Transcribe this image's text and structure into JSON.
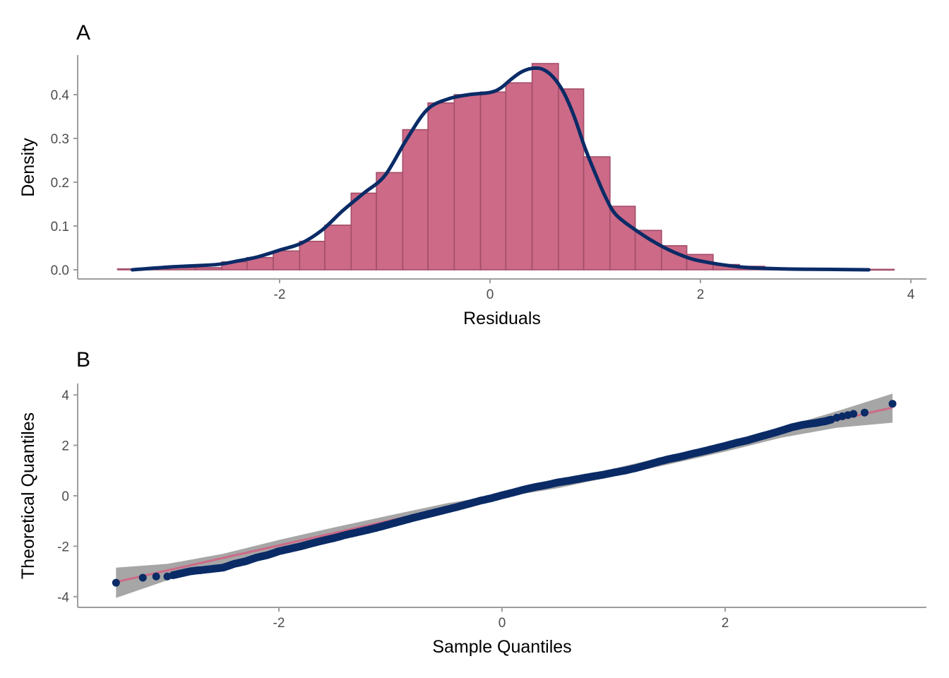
{
  "colors": {
    "bar_fill": "#CC6A87",
    "bar_stroke": "#A34E6A",
    "curve": "#0A2B66",
    "points": "#0A2B66",
    "ref_line": "#CC6A87",
    "band": "#A6A6A6",
    "axis": "#9E9E9E"
  },
  "chart_data": [
    {
      "panel": "A",
      "type": "bar",
      "subtype": "histogram with density curve",
      "title": "A",
      "xlabel": "Residuals",
      "ylabel": "Density",
      "xlim": [
        -3.4,
        4.0
      ],
      "ylim": [
        0,
        0.48
      ],
      "xticks": [
        -2,
        0,
        2,
        4
      ],
      "yticks": [
        0.0,
        0.1,
        0.2,
        0.3,
        0.4
      ],
      "xtick_labels": [
        "-2",
        "0",
        "2",
        "4"
      ],
      "ytick_labels": [
        "0.0",
        "0.1",
        "0.2",
        "0.3",
        "0.4"
      ],
      "grid": false,
      "bin_width": 0.246,
      "bins": [
        {
          "x0": -3.54,
          "x1": -3.29,
          "value": 0.002
        },
        {
          "x0": -3.29,
          "x1": -3.05,
          "value": 0.002
        },
        {
          "x0": -3.05,
          "x1": -2.8,
          "value": 0.005
        },
        {
          "x0": -2.8,
          "x1": -2.55,
          "value": 0.005
        },
        {
          "x0": -2.55,
          "x1": -2.31,
          "value": 0.018
        },
        {
          "x0": -2.31,
          "x1": -2.06,
          "value": 0.028
        },
        {
          "x0": -2.06,
          "x1": -1.81,
          "value": 0.043
        },
        {
          "x0": -1.81,
          "x1": -1.57,
          "value": 0.065
        },
        {
          "x0": -1.57,
          "x1": -1.32,
          "value": 0.102
        },
        {
          "x0": -1.32,
          "x1": -1.08,
          "value": 0.175
        },
        {
          "x0": -1.08,
          "x1": -0.83,
          "value": 0.222
        },
        {
          "x0": -0.83,
          "x1": -0.59,
          "value": 0.32
        },
        {
          "x0": -0.59,
          "x1": -0.34,
          "value": 0.381
        },
        {
          "x0": -0.34,
          "x1": -0.09,
          "value": 0.4
        },
        {
          "x0": -0.09,
          "x1": 0.15,
          "value": 0.406
        },
        {
          "x0": 0.15,
          "x1": 0.4,
          "value": 0.427
        },
        {
          "x0": 0.4,
          "x1": 0.65,
          "value": 0.471
        },
        {
          "x0": 0.65,
          "x1": 0.89,
          "value": 0.413
        },
        {
          "x0": 0.89,
          "x1": 1.14,
          "value": 0.258
        },
        {
          "x0": 1.14,
          "x1": 1.38,
          "value": 0.145
        },
        {
          "x0": 1.38,
          "x1": 1.63,
          "value": 0.09
        },
        {
          "x0": 1.63,
          "x1": 1.87,
          "value": 0.055
        },
        {
          "x0": 1.87,
          "x1": 2.12,
          "value": 0.035
        },
        {
          "x0": 2.12,
          "x1": 2.37,
          "value": 0.012
        },
        {
          "x0": 2.37,
          "x1": 2.61,
          "value": 0.008
        },
        {
          "x0": 2.61,
          "x1": 2.86,
          "value": 0.003
        },
        {
          "x0": 2.86,
          "x1": 3.11,
          "value": 0.002
        },
        {
          "x0": 3.11,
          "x1": 3.35,
          "value": 0.001
        },
        {
          "x0": 3.35,
          "x1": 3.6,
          "value": 0.001
        },
        {
          "x0": 3.6,
          "x1": 3.84,
          "value": 0.001
        }
      ],
      "density_curve": {
        "x": [
          -3.4,
          -3.0,
          -2.6,
          -2.4,
          -2.2,
          -2.0,
          -1.8,
          -1.6,
          -1.4,
          -1.2,
          -1.0,
          -0.8,
          -0.6,
          -0.4,
          -0.2,
          0.0,
          0.1,
          0.2,
          0.3,
          0.4,
          0.5,
          0.6,
          0.7,
          0.8,
          0.9,
          1.0,
          1.1,
          1.2,
          1.4,
          1.6,
          1.8,
          2.0,
          2.4,
          2.8,
          3.2,
          3.6
        ],
        "y": [
          0.0,
          0.007,
          0.012,
          0.02,
          0.03,
          0.045,
          0.06,
          0.09,
          0.135,
          0.175,
          0.215,
          0.295,
          0.365,
          0.39,
          0.4,
          0.405,
          0.415,
          0.435,
          0.452,
          0.46,
          0.458,
          0.44,
          0.405,
          0.35,
          0.28,
          0.22,
          0.165,
          0.125,
          0.088,
          0.058,
          0.035,
          0.02,
          0.006,
          0.002,
          0.001,
          0.0
        ]
      }
    },
    {
      "panel": "B",
      "type": "scatter",
      "subtype": "QQ plot with reference line and confidence band",
      "title": "B",
      "xlabel": "Sample Quantiles",
      "ylabel": "Theoretical Quantiles",
      "xlim": [
        -3.6,
        3.8
      ],
      "ylim": [
        -4.4,
        4.5
      ],
      "xticks": [
        -2,
        0,
        2
      ],
      "yticks": [
        -4,
        -2,
        0,
        2,
        4
      ],
      "xtick_labels": [
        "-2",
        "0",
        "2"
      ],
      "ytick_labels": [
        "-4",
        "-2",
        "0",
        "2",
        "4"
      ],
      "grid": false,
      "reference_line": {
        "x": [
          -3.46,
          3.5
        ],
        "y": [
          -3.42,
          3.5
        ]
      },
      "band": {
        "x": [
          -3.46,
          -3.0,
          -2.5,
          -2.0,
          -1.5,
          -1.0,
          -0.5,
          0.0,
          0.5,
          1.0,
          1.5,
          2.0,
          2.5,
          3.0,
          3.5
        ],
        "upper": [
          -2.85,
          -2.7,
          -2.3,
          -1.75,
          -1.25,
          -0.77,
          -0.3,
          0.06,
          0.58,
          1.08,
          1.6,
          2.12,
          2.7,
          3.35,
          4.05
        ],
        "lower": [
          -4.05,
          -3.35,
          -2.7,
          -2.12,
          -1.6,
          -1.08,
          -0.58,
          -0.06,
          0.3,
          0.77,
          1.25,
          1.75,
          2.3,
          2.7,
          2.9
        ]
      },
      "points_x": [
        -3.46,
        -3.22,
        -3.1,
        -3.0,
        -2.95,
        -2.9,
        -2.85,
        -2.8,
        -2.75,
        -2.7,
        -2.6,
        -2.5,
        -2.4,
        -2.3,
        -2.2,
        -2.1,
        -2.0,
        -1.9,
        -1.8,
        -1.7,
        -1.6,
        -1.5,
        -1.4,
        -1.3,
        -1.2,
        -1.1,
        -1.0,
        -0.9,
        -0.8,
        -0.7,
        -0.6,
        -0.5,
        -0.4,
        -0.3,
        -0.2,
        -0.1,
        0.0,
        0.1,
        0.2,
        0.3,
        0.4,
        0.5,
        0.6,
        0.7,
        0.8,
        0.9,
        1.0,
        1.1,
        1.2,
        1.3,
        1.4,
        1.5,
        1.6,
        1.7,
        1.8,
        1.9,
        2.0,
        2.1,
        2.2,
        2.3,
        2.4,
        2.5,
        2.6,
        2.7,
        2.8,
        2.85,
        2.9,
        2.95,
        3.0,
        3.05,
        3.1,
        3.15,
        3.25,
        3.5
      ],
      "points_y": [
        -3.45,
        -3.25,
        -3.2,
        -3.2,
        -3.15,
        -3.1,
        -3.05,
        -3.0,
        -2.97,
        -2.95,
        -2.9,
        -2.85,
        -2.7,
        -2.6,
        -2.45,
        -2.35,
        -2.2,
        -2.1,
        -2.0,
        -1.88,
        -1.77,
        -1.67,
        -1.55,
        -1.45,
        -1.35,
        -1.24,
        -1.12,
        -1.0,
        -0.88,
        -0.77,
        -0.66,
        -0.55,
        -0.44,
        -0.32,
        -0.2,
        -0.1,
        0.02,
        0.13,
        0.25,
        0.35,
        0.43,
        0.53,
        0.6,
        0.68,
        0.76,
        0.83,
        0.92,
        1.0,
        1.1,
        1.22,
        1.35,
        1.46,
        1.55,
        1.66,
        1.76,
        1.87,
        1.98,
        2.1,
        2.2,
        2.33,
        2.45,
        2.58,
        2.72,
        2.82,
        2.88,
        2.92,
        2.96,
        3.02,
        3.1,
        3.15,
        3.2,
        3.25,
        3.3,
        3.65
      ]
    }
  ]
}
